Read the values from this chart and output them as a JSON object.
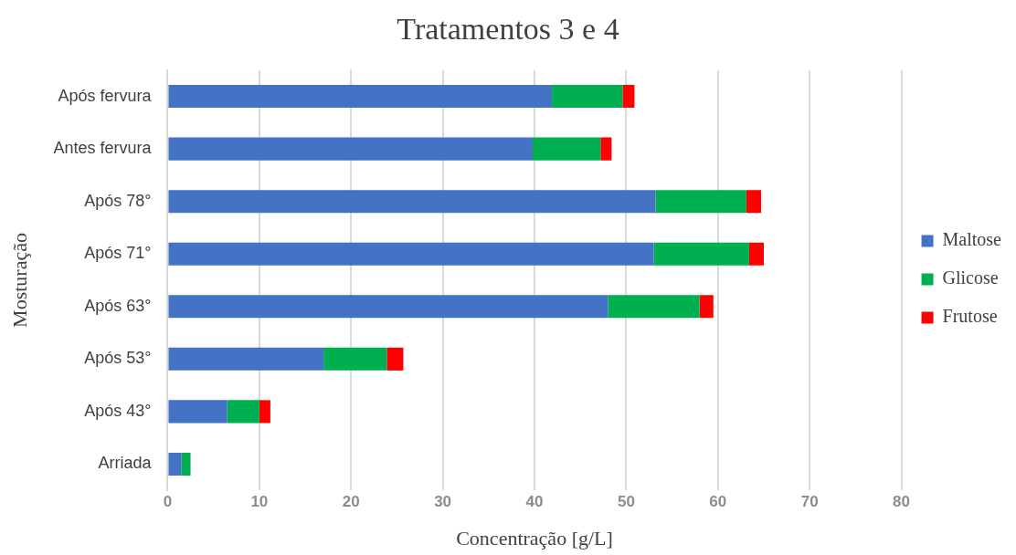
{
  "chart_data": {
    "type": "bar",
    "orientation": "horizontal",
    "stacked": true,
    "title": "Tratamentos 3 e 4",
    "xlabel": "Concentração [g/L]",
    "ylabel": "Mosturação",
    "categories": [
      "Após fervura",
      "Antes fervura",
      "Após 78°",
      "Após 71°",
      "Após 63°",
      "Após 53°",
      "Após 43°",
      "Arriada"
    ],
    "series": [
      {
        "name": "Maltose",
        "color": "#4472c4",
        "values": [
          41.9,
          39.8,
          53.2,
          53.0,
          48.0,
          17.0,
          6.5,
          1.5
        ]
      },
      {
        "name": "Glicose",
        "color": "#00b050",
        "values": [
          7.7,
          7.4,
          9.9,
          10.4,
          10.0,
          6.9,
          3.5,
          1.0
        ]
      },
      {
        "name": "Frutose",
        "color": "#ff0000",
        "values": [
          1.3,
          1.2,
          1.6,
          1.6,
          1.5,
          1.8,
          1.2,
          0
        ]
      }
    ],
    "xlim": [
      0,
      80
    ],
    "xticks": [
      0,
      10,
      20,
      30,
      40,
      50,
      60,
      70,
      80
    ],
    "grid": "x",
    "legend": "right"
  }
}
